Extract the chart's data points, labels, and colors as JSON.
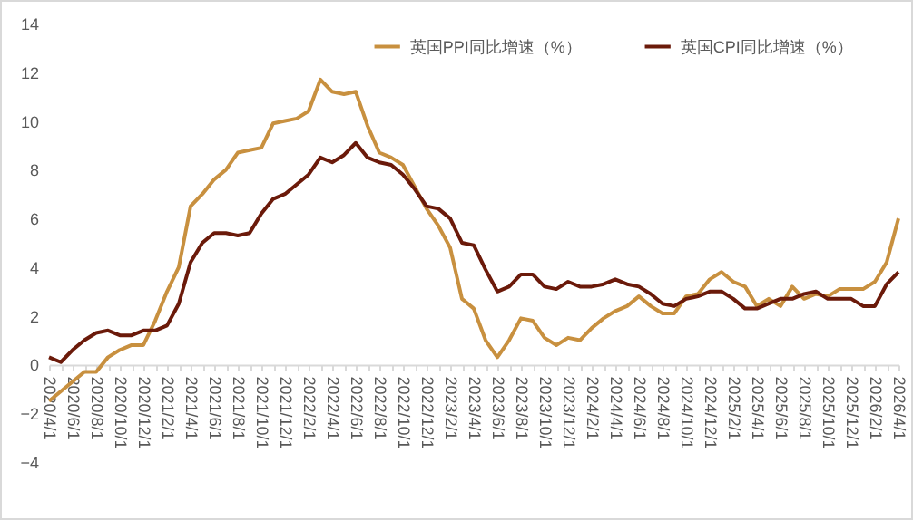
{
  "chart_data": {
    "type": "line",
    "categories": [
      "2020/4/1",
      null,
      "2020/6/1",
      null,
      "2020/8/1",
      null,
      "2020/10/1",
      null,
      "2020/12/1",
      null,
      "2021/2/1",
      null,
      "2021/4/1",
      null,
      "2021/6/1",
      null,
      "2021/8/1",
      null,
      "2021/10/1",
      null,
      "2021/12/1",
      null,
      "2022/2/1",
      null,
      "2022/4/1",
      null,
      "2022/6/1",
      null,
      "2022/8/1",
      null,
      "2022/10/1",
      null,
      "2022/12/1",
      null,
      "2023/2/1",
      null,
      "2023/4/1",
      null,
      "2023/6/1",
      null,
      "2023/8/1",
      null,
      "2023/10/1",
      null,
      "2023/12/1",
      null,
      "2024/2/1",
      null,
      "2024/4/1",
      null,
      "2024/6/1",
      null,
      "2024/8/1",
      null,
      "2024/10/1",
      null,
      "2024/12/1",
      null,
      "2025/2/1",
      null,
      "2025/4/1",
      null,
      "2025/6/1",
      null,
      "2025/8/1",
      null,
      "2025/10/1",
      null,
      "2025/12/1",
      null,
      "2026/2/1",
      null,
      "2026/4/1"
    ],
    "series": [
      {
        "name": "英国PPI同比增速（%）",
        "color": "#c8903f",
        "values": [
          -1.5,
          -1.1,
          -0.7,
          -0.3,
          -0.3,
          0.3,
          0.6,
          0.8,
          0.8,
          1.8,
          3.0,
          4.0,
          6.5,
          7.0,
          7.6,
          8.0,
          8.7,
          8.8,
          8.9,
          9.9,
          10.0,
          10.1,
          10.4,
          11.7,
          11.2,
          11.1,
          11.2,
          9.8,
          8.7,
          8.5,
          8.2,
          7.3,
          6.4,
          5.7,
          4.8,
          2.7,
          2.3,
          1.0,
          0.3,
          1.0,
          1.9,
          1.8,
          1.1,
          0.8,
          1.1,
          1.0,
          1.5,
          1.9,
          2.2,
          2.4,
          2.8,
          2.4,
          2.1,
          2.1,
          2.8,
          2.9,
          3.5,
          3.8,
          3.4,
          3.2,
          2.4,
          2.7,
          2.4,
          3.2,
          2.7,
          2.9,
          2.8,
          3.1,
          3.1,
          3.1,
          3.4,
          4.2,
          6.0
        ]
      },
      {
        "name": "英国CPI同比增速（%）",
        "color": "#6b1a0a",
        "values": [
          0.3,
          0.1,
          0.6,
          1.0,
          1.3,
          1.4,
          1.2,
          1.2,
          1.4,
          1.4,
          1.6,
          2.5,
          4.2,
          5.0,
          5.4,
          5.4,
          5.3,
          5.4,
          6.2,
          6.8,
          7.0,
          7.4,
          7.8,
          8.5,
          8.3,
          8.6,
          9.1,
          8.5,
          8.3,
          8.2,
          7.8,
          7.2,
          6.5,
          6.4,
          6.0,
          5.0,
          4.9,
          3.9,
          3.0,
          3.2,
          3.7,
          3.7,
          3.2,
          3.1,
          3.4,
          3.2,
          3.2,
          3.3,
          3.5,
          3.3,
          3.2,
          2.9,
          2.5,
          2.4,
          2.7,
          2.8,
          3.0,
          3.0,
          2.7,
          2.3,
          2.3,
          2.5,
          2.7,
          2.7,
          2.9,
          3.0,
          2.7,
          2.7,
          2.7,
          2.4,
          2.4,
          3.3,
          3.8
        ]
      }
    ],
    "ylim": [
      -4,
      14
    ],
    "yticks": [
      -4,
      -2,
      0,
      2,
      4,
      6,
      8,
      10,
      12,
      14
    ],
    "grid": false,
    "legend": "top",
    "marker": "none",
    "line_style": "solid"
  }
}
